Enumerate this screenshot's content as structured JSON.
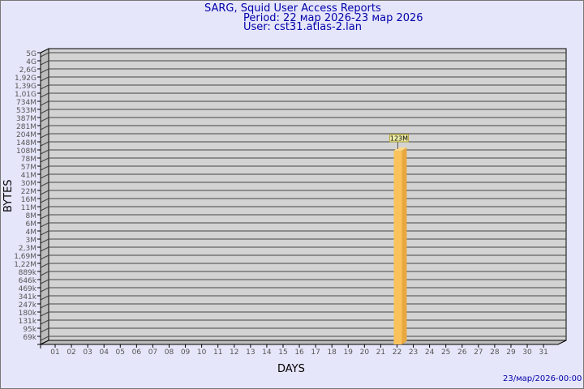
{
  "header": {
    "title": "SARG, Squid User Access Reports",
    "period": "Period: 22 мар 2026-23 мар 2026",
    "user": "User: cst31.atlas-2.lan"
  },
  "footer": {
    "timestamp": "23/мар/2026-00:00"
  },
  "colors": {
    "bar": "#f9c25c",
    "bar_side": "#e8a840",
    "panel": "#d3d3d3",
    "text": "#0000aa"
  },
  "chart_data": {
    "type": "bar",
    "xlabel": "DAYS",
    "ylabel": "BYTES",
    "y_scale": "log",
    "y_tick_labels": [
      "5G",
      "4G",
      "2,6G",
      "1,92G",
      "1,39G",
      "1,01G",
      "734M",
      "533M",
      "387M",
      "281M",
      "204M",
      "148M",
      "108M",
      "78M",
      "57M",
      "41M",
      "30M",
      "22M",
      "16M",
      "11M",
      "8M",
      "6M",
      "4M",
      "3M",
      "2,3M",
      "1,69M",
      "1,22M",
      "889k",
      "646k",
      "469k",
      "341k",
      "247k",
      "180k",
      "131k",
      "95k",
      "69k"
    ],
    "categories": [
      "01",
      "02",
      "03",
      "04",
      "05",
      "06",
      "07",
      "08",
      "09",
      "10",
      "11",
      "12",
      "13",
      "14",
      "15",
      "16",
      "17",
      "18",
      "19",
      "20",
      "21",
      "22",
      "23",
      "24",
      "25",
      "26",
      "27",
      "28",
      "29",
      "30",
      "31"
    ],
    "series": [
      {
        "values": [
          0,
          0,
          0,
          0,
          0,
          0,
          0,
          0,
          0,
          0,
          0,
          0,
          0,
          0,
          0,
          0,
          0,
          0,
          0,
          0,
          0,
          123000000,
          0,
          0,
          0,
          0,
          0,
          0,
          0,
          0,
          0
        ]
      }
    ],
    "data_labels": [
      {
        "category": "22",
        "label": "123M"
      }
    ],
    "grid": true
  }
}
